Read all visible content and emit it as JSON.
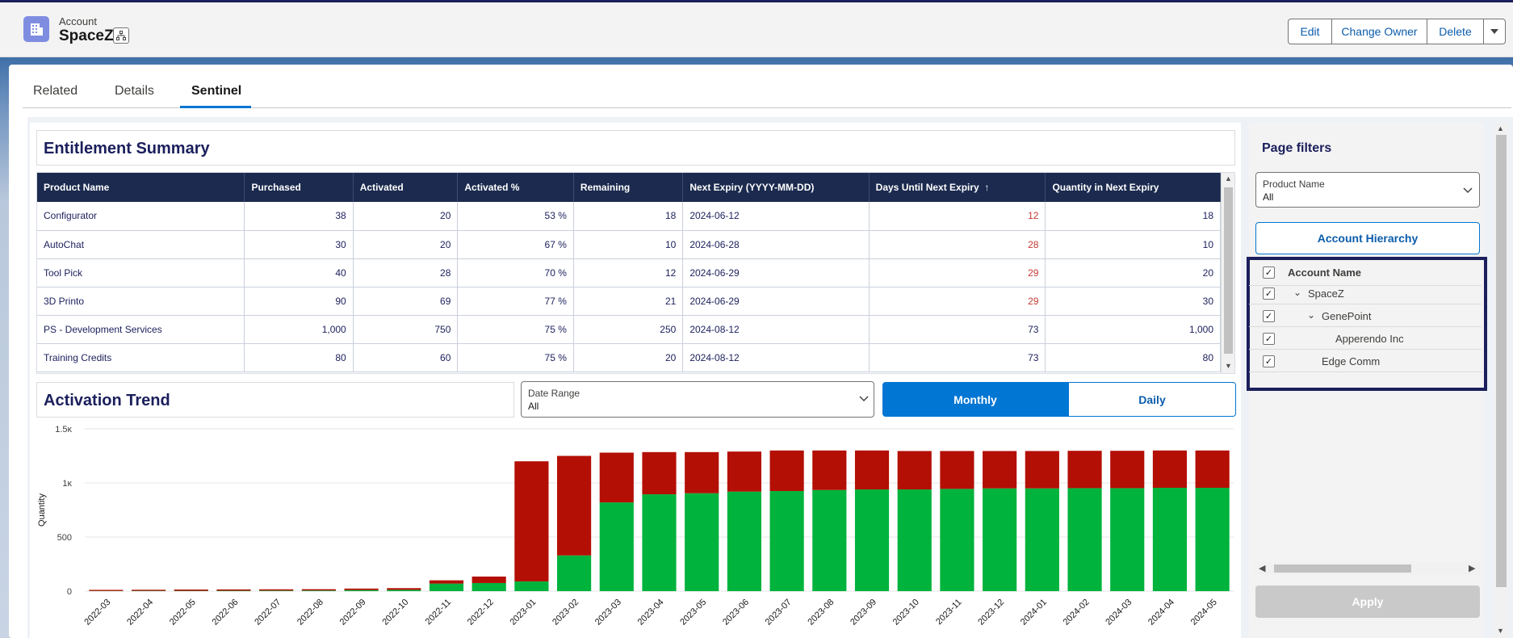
{
  "header": {
    "object_type": "Account",
    "record_name": "SpaceZ",
    "buttons": [
      "Edit",
      "Change Owner",
      "Delete"
    ]
  },
  "tabs": [
    {
      "label": "Related",
      "active": false
    },
    {
      "label": "Details",
      "active": false
    },
    {
      "label": "Sentinel",
      "active": true
    }
  ],
  "entitlement": {
    "title": "Entitlement Summary",
    "columns": [
      "Product Name",
      "Purchased",
      "Activated",
      "Activated %",
      "Remaining",
      "Next Expiry (YYYY-MM-DD)",
      "Days Until Next Expiry",
      "Quantity in Next Expiry"
    ],
    "sort_indicator": "↑",
    "rows": [
      [
        "Configurator",
        "38",
        "20",
        "53 %",
        "18",
        "2024-06-12",
        "12",
        "18"
      ],
      [
        "AutoChat",
        "30",
        "20",
        "67 %",
        "10",
        "2024-06-28",
        "28",
        "10"
      ],
      [
        "Tool Pick",
        "40",
        "28",
        "70 %",
        "12",
        "2024-06-29",
        "29",
        "20"
      ],
      [
        "3D Printo",
        "90",
        "69",
        "77 %",
        "21",
        "2024-06-29",
        "29",
        "30"
      ],
      [
        "PS - Development Services",
        "1,000",
        "750",
        "75 %",
        "250",
        "2024-08-12",
        "73",
        "1,000"
      ],
      [
        "Training Credits",
        "80",
        "60",
        "75 %",
        "20",
        "2024-08-12",
        "73",
        "80"
      ]
    ],
    "red_days_threshold": 30
  },
  "trend": {
    "title": "Activation Trend",
    "date_range_label": "Date Range",
    "date_range_value": "All",
    "monthly_label": "Monthly",
    "daily_label": "Daily"
  },
  "colors": {
    "activated": "#00b33c",
    "remaining": "#b30f05",
    "accent": "#0176d3",
    "navy": "#1b1f5c"
  },
  "chart_data": {
    "type": "bar",
    "stacked": true,
    "ylabel": "Quantity",
    "ylim": [
      0,
      1500
    ],
    "yticks": [
      0,
      500,
      1000,
      1500
    ],
    "ytick_labels": [
      "0",
      "500",
      "1κ",
      "1.5κ"
    ],
    "categories": [
      "2022-03",
      "2022-04",
      "2022-05",
      "2022-06",
      "2022-07",
      "2022-08",
      "2022-09",
      "2022-10",
      "2022-11",
      "2022-12",
      "2023-01",
      "2023-02",
      "2023-03",
      "2023-04",
      "2023-05",
      "2023-06",
      "2023-07",
      "2023-08",
      "2023-09",
      "2023-10",
      "2023-11",
      "2023-12",
      "2024-01",
      "2024-02",
      "2024-03",
      "2024-04",
      "2024-05"
    ],
    "series": [
      {
        "values": [
          2,
          3,
          3,
          4,
          5,
          6,
          10,
          12,
          70,
          75,
          90,
          330,
          820,
          895,
          905,
          920,
          925,
          935,
          940,
          940,
          945,
          950,
          950,
          952,
          952,
          955,
          955
        ]
      },
      {
        "values": [
          10,
          10,
          12,
          12,
          12,
          12,
          14,
          16,
          30,
          60,
          1110,
          920,
          460,
          390,
          380,
          370,
          375,
          365,
          360,
          355,
          350,
          345,
          345,
          345,
          345,
          345,
          345
        ]
      }
    ]
  },
  "filters": {
    "title": "Page filters",
    "product_label": "Product Name",
    "product_value": "All",
    "hierarchy_button": "Account Hierarchy",
    "tree_header": "Account Name",
    "tree": [
      {
        "label": "SpaceZ",
        "level": 1,
        "expanded": true
      },
      {
        "label": "GenePoint",
        "level": 2,
        "expanded": true
      },
      {
        "label": "Apperendo Inc",
        "level": 3,
        "expanded": false
      },
      {
        "label": "Edge Comm",
        "level": 2,
        "expanded": false
      }
    ],
    "apply_label": "Apply"
  }
}
